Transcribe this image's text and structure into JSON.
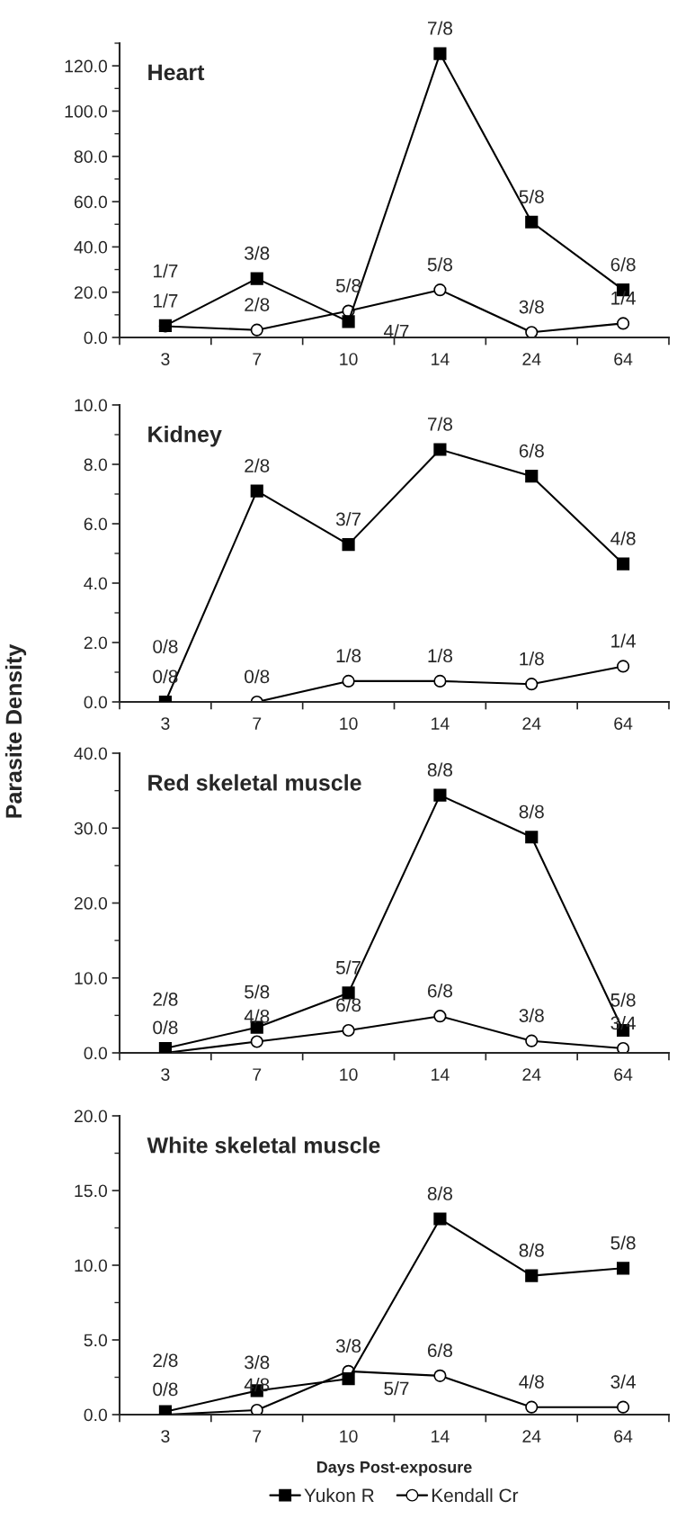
{
  "chart_data": [
    {
      "type": "line",
      "title": "Heart",
      "categories": [
        "3",
        "7",
        "10",
        "14",
        "24",
        "64"
      ],
      "ylim": [
        0,
        130
      ],
      "yticks": [
        {
          "value": 0,
          "label": "0.0"
        },
        {
          "value": 10,
          "label": null
        },
        {
          "value": 20,
          "label": "20.0"
        },
        {
          "value": 30,
          "label": null
        },
        {
          "value": 40,
          "label": "40.0"
        },
        {
          "value": 50,
          "label": null
        },
        {
          "value": 60,
          "label": "60.0"
        },
        {
          "value": 70,
          "label": null
        },
        {
          "value": 80,
          "label": "80.0"
        },
        {
          "value": 90,
          "label": null
        },
        {
          "value": 100,
          "label": "100.0"
        },
        {
          "value": 110,
          "label": null
        },
        {
          "value": 120,
          "label": "120.0"
        },
        {
          "value": 130,
          "label": null
        }
      ],
      "series": [
        {
          "color": "#000000",
          "marker": "square",
          "values": [
            5.2,
            26,
            7,
            125.4,
            51,
            21
          ]
        },
        {
          "color": "#000000",
          "marker": "circle",
          "values": [
            5,
            3.3,
            11.7,
            21,
            2.3,
            6.2
          ]
        }
      ],
      "annotations": [
        {
          "text": "1/7",
          "x": "3",
          "y": 5.2
        },
        {
          "text": "1/7",
          "x": "3",
          "y": 5
        },
        {
          "text": "3/8",
          "x": "7",
          "y": 26
        },
        {
          "text": "2/8",
          "x": "7",
          "y": 3.3
        },
        {
          "text": "4/7",
          "x": "10",
          "y": 7
        },
        {
          "text": "5/8",
          "x": "10",
          "y": 11.7
        },
        {
          "text": "7/8",
          "x": "14",
          "y": 125.4
        },
        {
          "text": "5/8",
          "x": "14",
          "y": 21
        },
        {
          "text": "5/8",
          "x": "24",
          "y": 51
        },
        {
          "text": "3/8",
          "x": "24",
          "y": 2.3
        },
        {
          "text": "6/8",
          "x": "64",
          "y": 21
        },
        {
          "text": "1/4",
          "x": "64",
          "y": 6.2
        }
      ]
    },
    {
      "type": "line",
      "title": "Kidney",
      "ylabel": "Parasite Density",
      "categories": [
        "3",
        "7",
        "10",
        "14",
        "24",
        "64"
      ],
      "ylim": [
        0,
        10
      ],
      "yticks": [
        {
          "value": 0,
          "label": "0.0"
        },
        {
          "value": 1,
          "label": null
        },
        {
          "value": 2,
          "label": "2.0"
        },
        {
          "value": 3,
          "label": null
        },
        {
          "value": 4,
          "label": "4.0"
        },
        {
          "value": 5,
          "label": null
        },
        {
          "value": 6,
          "label": "6.0"
        },
        {
          "value": 7,
          "label": null
        },
        {
          "value": 8,
          "label": "8.0"
        },
        {
          "value": 9,
          "label": null
        },
        {
          "value": 10,
          "label": "10.0"
        }
      ],
      "series": [
        {
          "color": "#000000",
          "marker": "square",
          "values": [
            0,
            7.1,
            5.3,
            8.5,
            7.6,
            4.65
          ]
        },
        {
          "color": "#000000",
          "marker": "circle",
          "values": [
            0,
            0,
            0.7,
            0.7,
            0.6,
            1.2
          ]
        }
      ],
      "annotations": [
        {
          "text": "0/8",
          "x": "3",
          "y": 0
        },
        {
          "text": "0/8",
          "x": "3",
          "y": 0
        },
        {
          "text": "2/8",
          "x": "7",
          "y": 7.1
        },
        {
          "text": "0/8",
          "x": "7",
          "y": 0
        },
        {
          "text": "3/7",
          "x": "10",
          "y": 5.3
        },
        {
          "text": "1/8",
          "x": "10",
          "y": 0.7
        },
        {
          "text": "7/8",
          "x": "14",
          "y": 8.5
        },
        {
          "text": "1/8",
          "x": "14",
          "y": 0.7
        },
        {
          "text": "6/8",
          "x": "24",
          "y": 7.6
        },
        {
          "text": "1/8",
          "x": "24",
          "y": 0.6
        },
        {
          "text": "4/8",
          "x": "64",
          "y": 4.65
        },
        {
          "text": "1/4",
          "x": "64",
          "y": 1.2
        }
      ]
    },
    {
      "type": "line",
      "title": "Red skeletal muscle",
      "categories": [
        "3",
        "7",
        "10",
        "14",
        "24",
        "64"
      ],
      "ylim": [
        0,
        40
      ],
      "yticks": [
        {
          "value": 0,
          "label": "0.0"
        },
        {
          "value": 5,
          "label": null
        },
        {
          "value": 10,
          "label": "10.0"
        },
        {
          "value": 15,
          "label": null
        },
        {
          "value": 20,
          "label": "20.0"
        },
        {
          "value": 25,
          "label": null
        },
        {
          "value": 30,
          "label": "30.0"
        },
        {
          "value": 35,
          "label": null
        },
        {
          "value": 40,
          "label": "40.0"
        }
      ],
      "series": [
        {
          "color": "#000000",
          "marker": "square",
          "values": [
            0.6,
            3.4,
            8.0,
            34.4,
            28.8,
            3.0
          ]
        },
        {
          "color": "#000000",
          "marker": "circle",
          "values": [
            0,
            1.5,
            3.0,
            4.9,
            1.6,
            0.6
          ]
        }
      ],
      "annotations": [
        {
          "text": "2/8",
          "x": "3",
          "y": 0.6
        },
        {
          "text": "0/8",
          "x": "3",
          "y": 0
        },
        {
          "text": "5/8",
          "x": "7",
          "y": 3.4
        },
        {
          "text": "4/8",
          "x": "7",
          "y": 1.5
        },
        {
          "text": "5/7",
          "x": "10",
          "y": 8.0
        },
        {
          "text": "6/8",
          "x": "10",
          "y": 3.0
        },
        {
          "text": "8/8",
          "x": "14",
          "y": 34.4
        },
        {
          "text": "6/8",
          "x": "14",
          "y": 4.9
        },
        {
          "text": "8/8",
          "x": "24",
          "y": 28.8
        },
        {
          "text": "3/8",
          "x": "24",
          "y": 1.6
        },
        {
          "text": "5/8",
          "x": "64",
          "y": 3.0
        },
        {
          "text": "3/4",
          "x": "64",
          "y": 0.6
        }
      ]
    },
    {
      "type": "line",
      "title": "White skeletal muscle",
      "xlabel": "Days Post-exposure",
      "legend": "bottom",
      "categories": [
        "3",
        "7",
        "10",
        "14",
        "24",
        "64"
      ],
      "ylim": [
        0,
        20
      ],
      "yticks": [
        {
          "value": 0,
          "label": "0.0"
        },
        {
          "value": 2.5,
          "label": null
        },
        {
          "value": 5,
          "label": "5.0"
        },
        {
          "value": 7.5,
          "label": null
        },
        {
          "value": 10,
          "label": "10.0"
        },
        {
          "value": 12.5,
          "label": null
        },
        {
          "value": 15,
          "label": "15.0"
        },
        {
          "value": 17.5,
          "label": null
        },
        {
          "value": 20,
          "label": "20.0"
        }
      ],
      "series": [
        {
          "name": "Yukon R",
          "color": "#000000",
          "marker": "square",
          "values": [
            0.2,
            1.6,
            2.4,
            13.1,
            9.3,
            9.8
          ]
        },
        {
          "name": "Kendall Cr",
          "color": "#000000",
          "marker": "circle",
          "values": [
            0,
            0.3,
            2.9,
            2.6,
            0.5,
            0.5
          ]
        }
      ],
      "annotations": [
        {
          "text": "2/8",
          "x": "3",
          "y": 0.2
        },
        {
          "text": "0/8",
          "x": "3",
          "y": 0
        },
        {
          "text": "3/8",
          "x": "7",
          "y": 1.6
        },
        {
          "text": "4/8",
          "x": "7",
          "y": 0.3
        },
        {
          "text": "5/7",
          "x": "10",
          "y": 2.4
        },
        {
          "text": "3/8",
          "x": "10",
          "y": 2.9
        },
        {
          "text": "8/8",
          "x": "14",
          "y": 13.1
        },
        {
          "text": "6/8",
          "x": "14",
          "y": 2.6
        },
        {
          "text": "8/8",
          "x": "24",
          "y": 9.3
        },
        {
          "text": "4/8",
          "x": "24",
          "y": 0.5
        },
        {
          "text": "5/8",
          "x": "64",
          "y": 9.8
        },
        {
          "text": "3/4",
          "x": "64",
          "y": 0.5
        }
      ]
    }
  ]
}
